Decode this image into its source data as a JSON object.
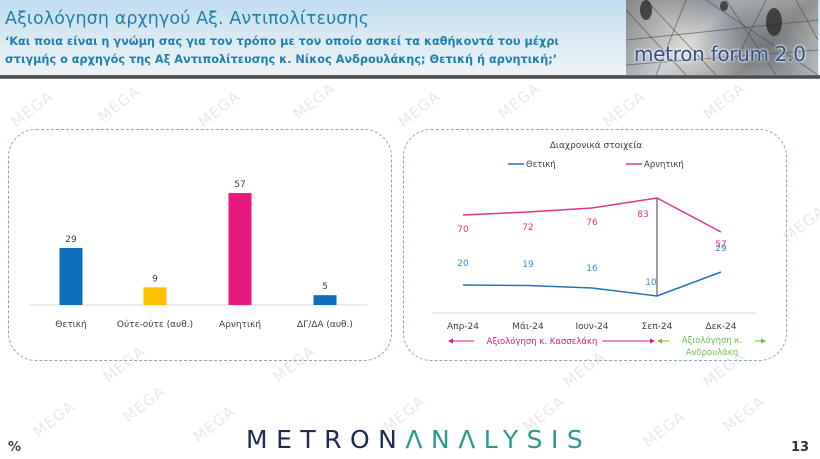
{
  "header": {
    "title": "Αξιολόγηση αρχηγού Αξ. Αντιπολίτευσης",
    "subtitle_line1": "‘Και ποια είναι η γνώμη σας για τον τρόπο με τον οποίο ασκεί τα καθήκοντά του μέχρι",
    "subtitle_line2": "στιγμής ο αρχηγός της Αξ Αντιπολίτευσης κ. Νίκος Ανδρουλάκης; Θετική ή αρνητική;’",
    "brand": "metron forum 2.0"
  },
  "watermark_text": "MEGA",
  "footer": {
    "logo_part1": "METRON",
    "logo_part2": "ΛNΛLYSIS",
    "unit": "%",
    "page_number": "13"
  },
  "colors": {
    "positive": "#0e6fbf",
    "neutral": "#ffc000",
    "negative": "#e8197d",
    "dkna": "#0e6fbf",
    "line_positive": "#1f77b4",
    "line_negative": "#e0338a",
    "label_positive": "#3a8fcf",
    "label_negative": "#e0338a",
    "kasselakis_arrow": "#e0197d",
    "androulakis_arrow": "#6cc04a",
    "header_text": "#1f7fae"
  },
  "chart_data": [
    {
      "type": "bar",
      "title": "",
      "categories": [
        "Θετική",
        "Ούτε-ούτε (αυθ.)",
        "Αρνητική",
        "ΔΓ/ΔΑ (αυθ.)"
      ],
      "values": [
        29,
        9,
        57,
        5
      ],
      "colors": [
        "#0e6fbf",
        "#ffc000",
        "#e8197d",
        "#0e6fbf"
      ],
      "xlabel": "",
      "ylabel": "",
      "unit": "%",
      "ylim": [
        0,
        60
      ],
      "grid": false,
      "data_labels": true
    },
    {
      "type": "line",
      "title": "Διαχρονικά στοιχεία",
      "x": [
        "Απρ-24",
        "Μάι-24",
        "Ιουν-24",
        "Σεπ-24",
        "Δεκ-24"
      ],
      "series": [
        {
          "name": "Θετική",
          "values": [
            20,
            19,
            16,
            10,
            29
          ],
          "color": "#1f77b4"
        },
        {
          "name": "Αρνητική",
          "values": [
            70,
            72,
            76,
            83,
            57
          ],
          "color": "#e0338a"
        }
      ],
      "legend_position": "top",
      "grid": false,
      "ylim": [
        0,
        100
      ],
      "annotations": [
        {
          "text": "Αξιολόγηση κ. Κασσελάκη",
          "span": [
            "Απρ-24",
            "Σεπ-24"
          ],
          "color": "#e0197d"
        },
        {
          "text_line1": "Αξιολόγηση κ.",
          "text_line2": "Ανδρουλάκη",
          "span": [
            "Σεπ-24",
            "Δεκ-24"
          ],
          "color": "#6cc04a"
        }
      ],
      "divider_at": "Σεπ-24"
    }
  ]
}
